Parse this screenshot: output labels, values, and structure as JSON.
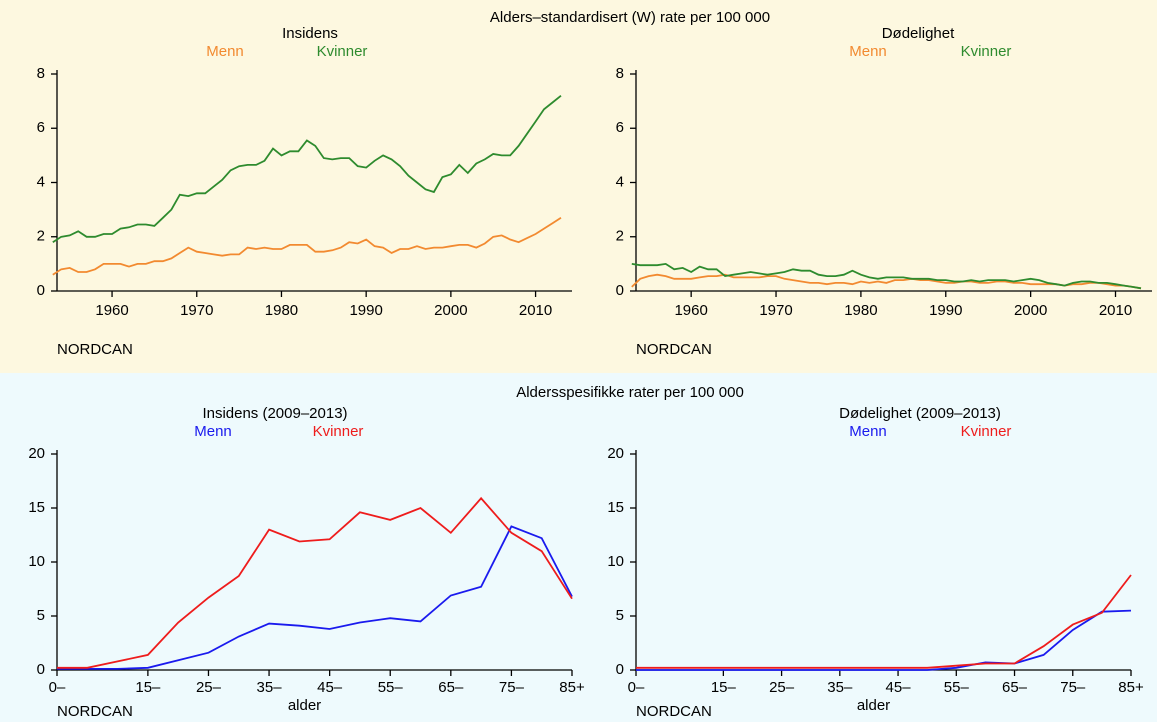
{
  "headings": [
    "Alders–standardisert (W) rate per 100 000",
    "Aldersspesifikke rater per 100 000"
  ],
  "chart_data": [
    {
      "type": "line",
      "subtitle": "Insidens",
      "source": "NORDCAN",
      "x": [
        1953,
        1954,
        1955,
        1956,
        1957,
        1958,
        1959,
        1960,
        1961,
        1962,
        1963,
        1964,
        1965,
        1966,
        1967,
        1968,
        1969,
        1970,
        1971,
        1972,
        1973,
        1974,
        1975,
        1976,
        1977,
        1978,
        1979,
        1980,
        1981,
        1982,
        1983,
        1984,
        1985,
        1986,
        1987,
        1988,
        1989,
        1990,
        1991,
        1992,
        1993,
        1994,
        1995,
        1996,
        1997,
        1998,
        1999,
        2000,
        2001,
        2002,
        2003,
        2004,
        2005,
        2006,
        2007,
        2008,
        2009,
        2010,
        2011,
        2012,
        2013
      ],
      "xlim": [
        1953.5,
        2014.3
      ],
      "xticks": [
        1960,
        1970,
        1980,
        1990,
        2000,
        2010
      ],
      "ylim": [
        0,
        8
      ],
      "yticks": [
        0,
        2,
        4,
        6,
        8
      ],
      "series": [
        {
          "name": "Menn",
          "color": "#f28a30",
          "values": [
            0.6,
            0.8,
            0.85,
            0.7,
            0.7,
            0.8,
            1.0,
            1.0,
            1.0,
            0.9,
            1.0,
            1.0,
            1.1,
            1.1,
            1.2,
            1.4,
            1.6,
            1.45,
            1.4,
            1.35,
            1.3,
            1.35,
            1.35,
            1.6,
            1.55,
            1.6,
            1.55,
            1.55,
            1.7,
            1.7,
            1.7,
            1.45,
            1.45,
            1.5,
            1.6,
            1.8,
            1.75,
            1.9,
            1.65,
            1.6,
            1.4,
            1.55,
            1.55,
            1.65,
            1.55,
            1.6,
            1.6,
            1.65,
            1.7,
            1.7,
            1.6,
            1.75,
            2.0,
            2.05,
            1.9,
            1.8,
            1.95,
            2.1,
            2.3,
            2.5,
            2.7
          ]
        },
        {
          "name": "Kvinner",
          "color": "#2e8b2e",
          "values": [
            1.8,
            2.0,
            2.05,
            2.2,
            2.0,
            2.0,
            2.1,
            2.1,
            2.3,
            2.35,
            2.45,
            2.45,
            2.4,
            2.7,
            3.0,
            3.55,
            3.5,
            3.6,
            3.6,
            3.85,
            4.1,
            4.45,
            4.6,
            4.65,
            4.65,
            4.8,
            5.25,
            5.0,
            5.15,
            5.15,
            5.55,
            5.35,
            4.9,
            4.85,
            4.9,
            4.9,
            4.6,
            4.55,
            4.8,
            5.0,
            4.85,
            4.6,
            4.25,
            4.0,
            3.75,
            3.65,
            4.2,
            4.3,
            4.65,
            4.35,
            4.7,
            4.85,
            5.05,
            5.0,
            5.0,
            5.35,
            5.8,
            6.25,
            6.7,
            6.95,
            7.2
          ]
        }
      ]
    },
    {
      "type": "line",
      "subtitle": "Dødelighet",
      "source": "NORDCAN",
      "x": [
        1953,
        1954,
        1955,
        1956,
        1957,
        1958,
        1959,
        1960,
        1961,
        1962,
        1963,
        1964,
        1965,
        1966,
        1967,
        1968,
        1969,
        1970,
        1971,
        1972,
        1973,
        1974,
        1975,
        1976,
        1977,
        1978,
        1979,
        1980,
        1981,
        1982,
        1983,
        1984,
        1985,
        1986,
        1987,
        1988,
        1989,
        1990,
        1991,
        1992,
        1993,
        1994,
        1995,
        1996,
        1997,
        1998,
        1999,
        2000,
        2001,
        2002,
        2003,
        2004,
        2005,
        2006,
        2007,
        2008,
        2009,
        2010,
        2011,
        2012,
        2013
      ],
      "xlim": [
        1953.5,
        2014.3
      ],
      "xticks": [
        1960,
        1970,
        1980,
        1990,
        2000,
        2010
      ],
      "ylim": [
        0,
        8
      ],
      "yticks": [
        0,
        2,
        4,
        6,
        8
      ],
      "series": [
        {
          "name": "Menn",
          "color": "#f28a30",
          "values": [
            0.15,
            0.45,
            0.55,
            0.6,
            0.55,
            0.45,
            0.45,
            0.45,
            0.5,
            0.55,
            0.55,
            0.6,
            0.5,
            0.5,
            0.5,
            0.5,
            0.55,
            0.55,
            0.45,
            0.4,
            0.35,
            0.3,
            0.3,
            0.25,
            0.3,
            0.3,
            0.25,
            0.35,
            0.3,
            0.35,
            0.3,
            0.4,
            0.4,
            0.45,
            0.4,
            0.4,
            0.35,
            0.3,
            0.3,
            0.35,
            0.35,
            0.3,
            0.3,
            0.35,
            0.35,
            0.3,
            0.3,
            0.25,
            0.25,
            0.25,
            0.25,
            0.2,
            0.25,
            0.25,
            0.3,
            0.3,
            0.25,
            0.2,
            0.2,
            0.15,
            0.1
          ]
        },
        {
          "name": "Kvinner",
          "color": "#2e8b2e",
          "values": [
            1.0,
            0.95,
            0.95,
            0.95,
            1.0,
            0.8,
            0.85,
            0.7,
            0.9,
            0.8,
            0.8,
            0.55,
            0.6,
            0.65,
            0.7,
            0.65,
            0.6,
            0.65,
            0.7,
            0.8,
            0.75,
            0.75,
            0.6,
            0.55,
            0.55,
            0.6,
            0.75,
            0.6,
            0.5,
            0.45,
            0.5,
            0.5,
            0.5,
            0.45,
            0.45,
            0.45,
            0.4,
            0.4,
            0.35,
            0.35,
            0.4,
            0.35,
            0.4,
            0.4,
            0.4,
            0.35,
            0.4,
            0.45,
            0.4,
            0.3,
            0.25,
            0.2,
            0.3,
            0.35,
            0.35,
            0.3,
            0.3,
            0.25,
            0.2,
            0.15,
            0.1
          ]
        }
      ]
    },
    {
      "type": "line",
      "subtitle": "Insidens (2009–2013)",
      "source": "NORDCAN",
      "x_label": "alder",
      "categories": [
        "0–",
        null,
        null,
        "15–",
        null,
        "25–",
        null,
        "35–",
        null,
        "45–",
        null,
        "55–",
        null,
        "65–",
        null,
        "75–",
        null,
        "85+"
      ],
      "ylim": [
        0,
        20
      ],
      "yticks": [
        0,
        5,
        10,
        15,
        20
      ],
      "series": [
        {
          "name": "Menn",
          "color": "#1a1aee",
          "values": [
            0.1,
            0.1,
            0.1,
            0.2,
            0.9,
            1.6,
            3.1,
            4.3,
            4.1,
            3.8,
            4.4,
            4.8,
            4.5,
            6.9,
            7.7,
            13.3,
            12.2,
            6.8
          ]
        },
        {
          "name": "Kvinner",
          "color": "#ee1c1c",
          "values": [
            0.2,
            0.2,
            0.8,
            1.4,
            4.4,
            6.7,
            8.7,
            13.0,
            11.9,
            12.1,
            14.6,
            13.9,
            15.0,
            12.7,
            15.9,
            12.7,
            11.0,
            6.6
          ]
        }
      ]
    },
    {
      "type": "line",
      "subtitle": "Dødelighet (2009–2013)",
      "source": "NORDCAN",
      "x_label": "alder",
      "categories": [
        "0–",
        null,
        null,
        "15–",
        null,
        "25–",
        null,
        "35–",
        null,
        "45–",
        null,
        "55–",
        null,
        "65–",
        null,
        "75–",
        null,
        "85+"
      ],
      "ylim": [
        0,
        20
      ],
      "yticks": [
        0,
        5,
        10,
        15,
        20
      ],
      "series": [
        {
          "name": "Menn",
          "color": "#1a1aee",
          "values": [
            0,
            0,
            0,
            0,
            0,
            0,
            0,
            0,
            0,
            0,
            0,
            0.2,
            0.7,
            0.6,
            1.4,
            3.7,
            5.4,
            5.5
          ]
        },
        {
          "name": "Kvinner",
          "color": "#ee1c1c",
          "values": [
            0.2,
            0.2,
            0.2,
            0.2,
            0.2,
            0.2,
            0.2,
            0.2,
            0.2,
            0.2,
            0.2,
            0.4,
            0.6,
            0.6,
            2.2,
            4.2,
            5.3,
            8.8
          ]
        }
      ]
    }
  ]
}
